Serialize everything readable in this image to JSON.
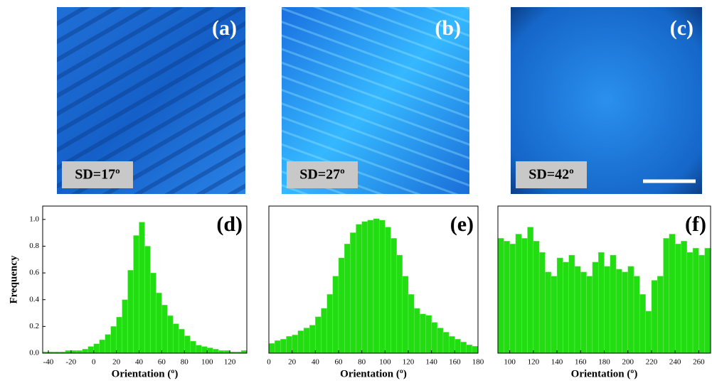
{
  "images": [
    {
      "label": "(a)",
      "caption": "SD=17º"
    },
    {
      "label": "(b)",
      "caption": "SD=27º"
    },
    {
      "label": "(c)",
      "caption": "SD=42º"
    }
  ],
  "chart_data": [
    {
      "type": "histogram",
      "label": "(d)",
      "xlabel": "Orientation (º)",
      "ylabel": "Frequency",
      "color": "#22dd11",
      "bins": [
        -45,
        -40,
        -35,
        -30,
        -25,
        -20,
        -15,
        -10,
        -5,
        0,
        5,
        10,
        15,
        20,
        25,
        30,
        35,
        40,
        45,
        50,
        55,
        60,
        65,
        70,
        75,
        80,
        85,
        90,
        95,
        100,
        105,
        110,
        115,
        120,
        125,
        130,
        135
      ],
      "values": [
        0.01,
        0.01,
        0.01,
        0.01,
        0.02,
        0.02,
        0.02,
        0.03,
        0.05,
        0.07,
        0.1,
        0.14,
        0.2,
        0.27,
        0.4,
        0.62,
        0.88,
        0.98,
        0.8,
        0.6,
        0.45,
        0.36,
        0.28,
        0.22,
        0.18,
        0.13,
        0.09,
        0.06,
        0.05,
        0.04,
        0.03,
        0.02,
        0.02,
        0.01,
        0.01,
        0.02
      ],
      "xlim": [
        -45,
        135
      ],
      "xticks": [
        -40,
        -20,
        0,
        20,
        40,
        60,
        80,
        100,
        120
      ],
      "ylim": [
        0,
        1.1
      ],
      "yticks": [
        {
          "value": 0,
          "label": "0.0"
        },
        0.2,
        0.4,
        0.6,
        0.8,
        {
          "value": 1,
          "label": "1.0"
        }
      ]
    },
    {
      "type": "histogram",
      "label": "(e)",
      "xlabel": "Orientation (º)",
      "color": "#22dd11",
      "bins": [
        0,
        5,
        10,
        15,
        20,
        25,
        30,
        35,
        40,
        45,
        50,
        55,
        60,
        65,
        70,
        75,
        80,
        85,
        90,
        95,
        100,
        105,
        110,
        115,
        120,
        125,
        130,
        135,
        140,
        145,
        150,
        155,
        160,
        165,
        170,
        175,
        180
      ],
      "values": [
        0.07,
        0.09,
        0.1,
        0.12,
        0.13,
        0.16,
        0.18,
        0.2,
        0.26,
        0.32,
        0.42,
        0.55,
        0.68,
        0.78,
        0.86,
        0.92,
        0.94,
        0.95,
        0.96,
        0.95,
        0.9,
        0.82,
        0.7,
        0.55,
        0.42,
        0.32,
        0.28,
        0.27,
        0.22,
        0.18,
        0.15,
        0.12,
        0.1,
        0.08,
        0.06,
        0.05
      ],
      "xlim": [
        0,
        180
      ],
      "xticks": [
        0,
        20,
        40,
        60,
        80,
        100,
        120,
        140,
        160,
        180
      ],
      "ylim": [
        0,
        1.05
      ]
    },
    {
      "type": "histogram",
      "label": "(f)",
      "xlabel": "Orientation (º)",
      "color": "#22dd11",
      "bins": [
        90,
        95,
        100,
        105,
        110,
        115,
        120,
        125,
        130,
        135,
        140,
        145,
        150,
        155,
        160,
        165,
        170,
        175,
        180,
        185,
        190,
        195,
        200,
        205,
        210,
        215,
        220,
        225,
        230,
        235,
        240,
        245,
        250,
        255,
        260,
        265,
        270
      ],
      "values": [
        0.82,
        0.8,
        0.78,
        0.85,
        0.82,
        0.9,
        0.8,
        0.72,
        0.58,
        0.55,
        0.68,
        0.65,
        0.7,
        0.62,
        0.58,
        0.55,
        0.65,
        0.72,
        0.62,
        0.7,
        0.6,
        0.58,
        0.62,
        0.55,
        0.42,
        0.3,
        0.52,
        0.55,
        0.82,
        0.85,
        0.78,
        0.8,
        0.72,
        0.75,
        0.7,
        0.75
      ],
      "xlim": [
        90,
        270
      ],
      "xticks": [
        100,
        120,
        140,
        160,
        180,
        200,
        220,
        240,
        260
      ],
      "ylim": [
        0,
        1.05
      ]
    }
  ]
}
